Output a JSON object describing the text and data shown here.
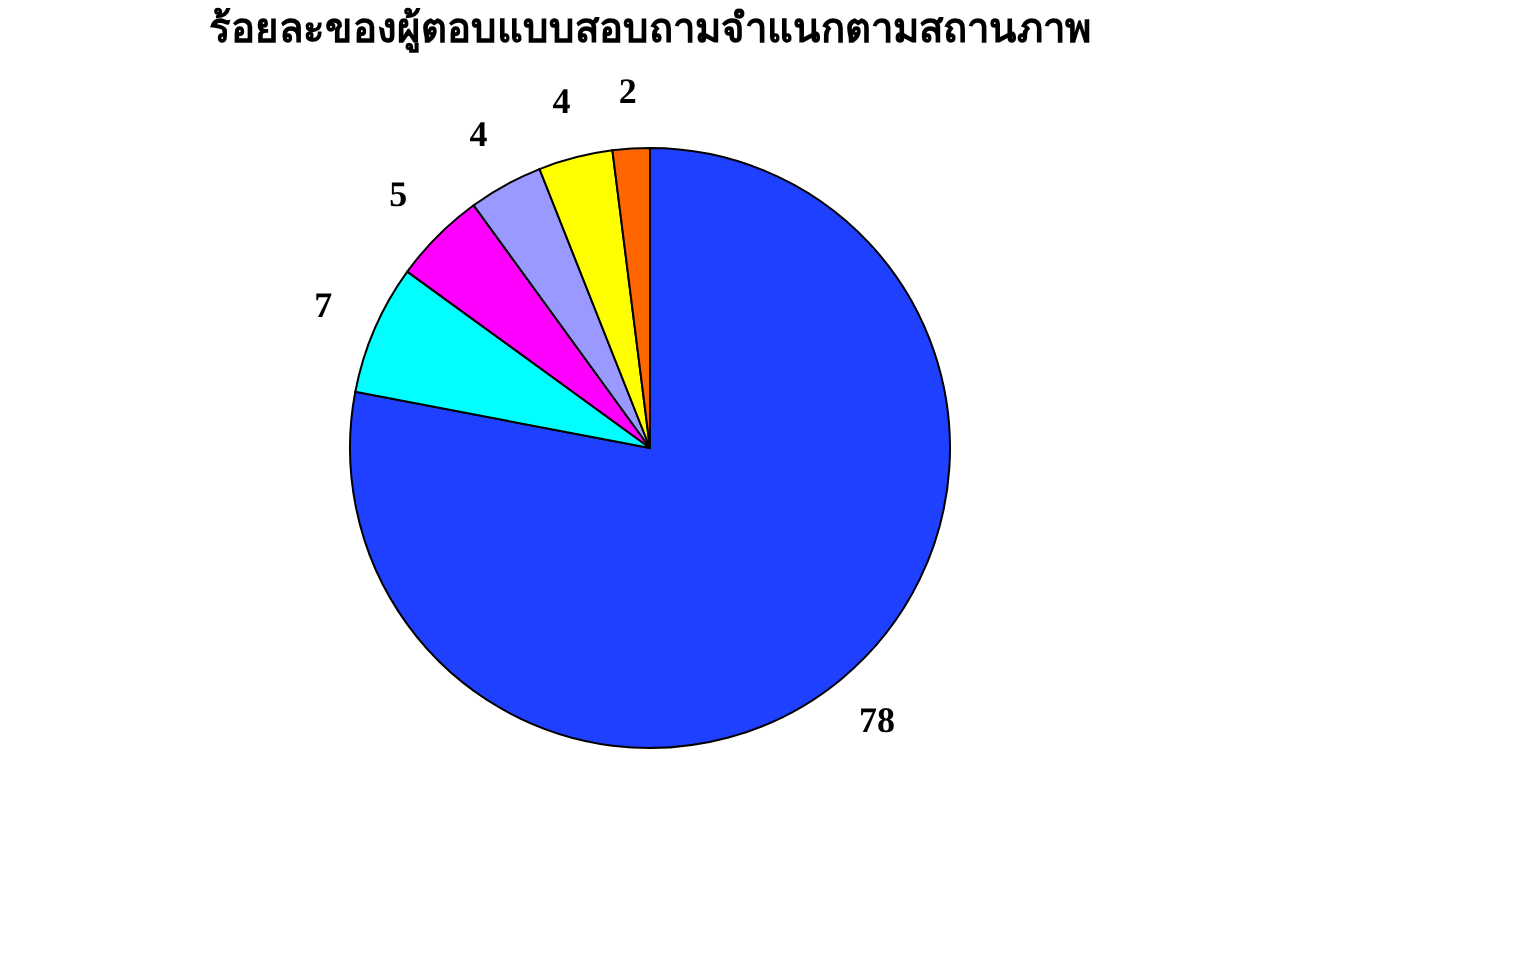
{
  "chart_data": {
    "type": "pie",
    "title": "ร้อยละของผู้ตอบแบบสอบถามจำแนกตามสถานภาพ",
    "categories": [
      null,
      null,
      null,
      null,
      null,
      null
    ],
    "values": [
      78,
      7,
      5,
      4,
      4,
      2
    ],
    "colors": [
      "#2040ff",
      "#00ffff",
      "#ff00ff",
      "#9999ff",
      "#ffff00",
      "#ff6600"
    ],
    "data_labels": true
  }
}
